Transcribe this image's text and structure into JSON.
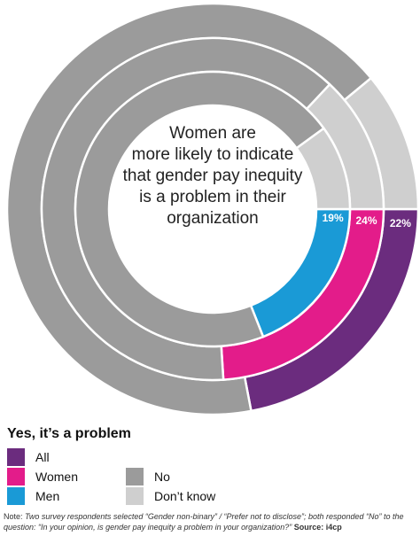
{
  "chart_data": {
    "type": "pie",
    "subtype": "concentric-donut",
    "center_text": [
      "Women are",
      "more likely to indicate",
      "that gender pay inequity",
      "is a problem in their",
      "organization"
    ],
    "categories": [
      "Yes, it’s a problem",
      "No",
      "Don’t know"
    ],
    "series": [
      {
        "name": "All",
        "values": [
          22,
          67,
          11
        ],
        "value_labels": [
          "22%",
          "",
          ""
        ]
      },
      {
        "name": "Women",
        "values": [
          24,
          63,
          13
        ],
        "value_labels": [
          "24%",
          "",
          ""
        ]
      },
      {
        "name": "Men",
        "values": [
          19,
          71,
          10
        ],
        "value_labels": [
          "19%",
          "",
          ""
        ]
      }
    ],
    "colors": {
      "All": "#6b2c7e",
      "Women": "#e31c8a",
      "Men": "#1a9ad6",
      "No": "#9b9b9b",
      "Don’t know": "#cfcfcf"
    },
    "legend": {
      "title": "Yes, it’s a problem",
      "items": [
        {
          "label": "All",
          "color": "#6b2c7e"
        },
        {
          "label": "Women",
          "color": "#e31c8a"
        },
        {
          "label": "Men",
          "color": "#1a9ad6"
        },
        {
          "label": "No",
          "color": "#9b9b9b"
        },
        {
          "label": "Don’t know",
          "color": "#cfcfcf"
        }
      ],
      "placement": "bottom-left"
    }
  },
  "note": {
    "prefix": "Note: ",
    "text": "Two survey respondents selected “Gender non-binary” / “Prefer not to disclose”; both responded “No” to the question: “In your opinion, is gender pay inequity a problem in your organization?”",
    "source_label": "Source:",
    "source": "i4cp"
  }
}
